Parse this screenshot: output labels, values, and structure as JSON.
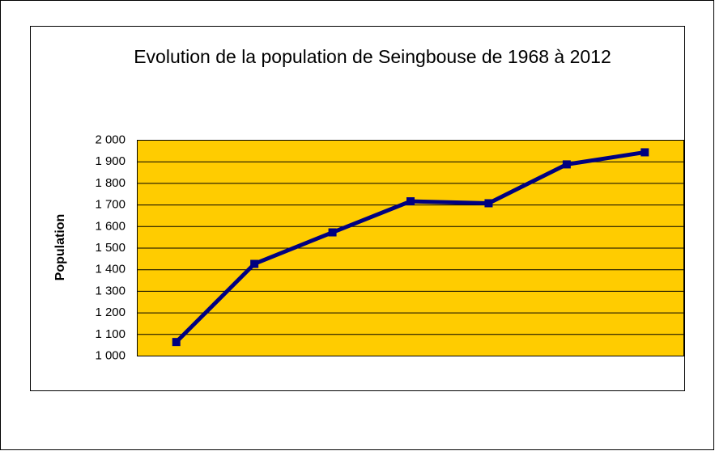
{
  "chart_data": {
    "type": "line",
    "title": "Evolution de la population de Seingbouse de 1968 à 2012",
    "y_label": "Population",
    "categories": [
      null,
      null,
      null,
      null,
      null,
      null,
      null
    ],
    "series": [
      {
        "name": "Population",
        "color": "#000080",
        "values": [
          1065,
          1427,
          1573,
          1717,
          1708,
          1888,
          1944
        ]
      }
    ],
    "ylim": [
      1000,
      2000
    ],
    "yticks": [
      {
        "value": 1000,
        "label": "1 000"
      },
      {
        "value": 1100,
        "label": "1 100"
      },
      {
        "value": 1200,
        "label": "1 200"
      },
      {
        "value": 1300,
        "label": "1 300"
      },
      {
        "value": 1400,
        "label": "1 400"
      },
      {
        "value": 1500,
        "label": "1 500"
      },
      {
        "value": 1600,
        "label": "1 600"
      },
      {
        "value": 1700,
        "label": "1 700"
      },
      {
        "value": 1800,
        "label": "1 800"
      },
      {
        "value": 1900,
        "label": "1 900"
      },
      {
        "value": 2000,
        "label": "2 000"
      }
    ],
    "grid": true,
    "plot_background": "#ffcc00"
  }
}
